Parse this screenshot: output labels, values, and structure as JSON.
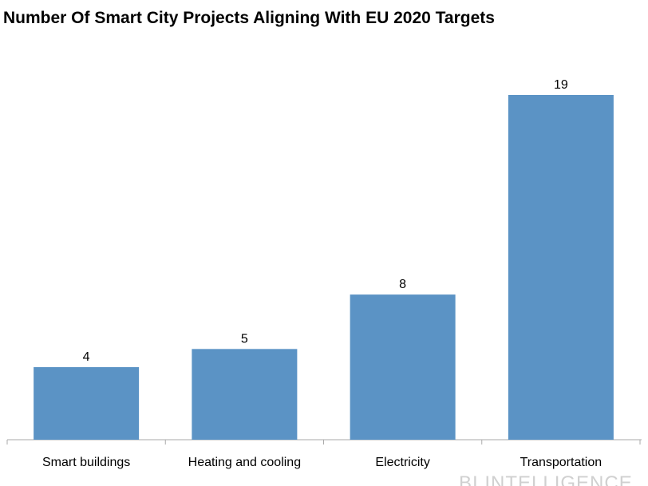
{
  "chart_data": {
    "type": "bar",
    "title": "Number Of Smart City Projects Aligning With EU 2020 Targets",
    "categories": [
      "Smart buildings",
      "Heating and cooling",
      "Electricity",
      "Transportation"
    ],
    "values": [
      4,
      5,
      8,
      19
    ],
    "color": "#5b93c5",
    "watermark": "BI INTELLIGENCE"
  }
}
